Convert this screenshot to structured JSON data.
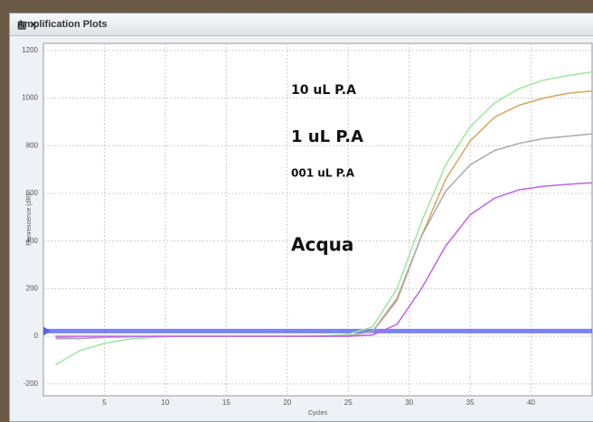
{
  "window": {
    "title": "Amplification Plots"
  },
  "chart_data": {
    "type": "line",
    "x_label": "Cycles",
    "y_label": "Fluorescence (dR)",
    "annotations": [
      "10 uL P.A",
      "1 uL P.A",
      "001 uL P.A",
      "Acqua"
    ],
    "x": [
      1,
      3,
      5,
      7,
      9,
      11,
      13,
      15,
      17,
      19,
      21,
      23,
      25,
      27,
      29,
      31,
      33,
      35,
      37,
      39,
      41,
      43,
      45
    ],
    "series": [
      {
        "color": "#9be89b",
        "values": [
          -120,
          -60,
          -30,
          -12,
          -5,
          0,
          0,
          0,
          0,
          0,
          0,
          2,
          8,
          40,
          200,
          480,
          720,
          880,
          980,
          1040,
          1075,
          1095,
          1110
        ]
      },
      {
        "color": "#d9a45a",
        "values": [
          -5,
          -8,
          -5,
          -3,
          0,
          0,
          0,
          0,
          0,
          0,
          0,
          0,
          2,
          20,
          150,
          420,
          660,
          820,
          920,
          970,
          1000,
          1020,
          1030
        ]
      },
      {
        "color": "#a9a9b3",
        "values": [
          -10,
          -10,
          -5,
          -2,
          0,
          0,
          0,
          0,
          0,
          0,
          0,
          0,
          2,
          20,
          160,
          420,
          610,
          720,
          780,
          810,
          830,
          840,
          850
        ]
      },
      {
        "color": "#c061e8",
        "values": [
          0,
          0,
          0,
          0,
          0,
          0,
          0,
          0,
          0,
          0,
          0,
          0,
          0,
          5,
          50,
          200,
          380,
          510,
          580,
          615,
          630,
          638,
          645
        ]
      }
    ],
    "threshold": 22,
    "threshold_color": "#5b63f0",
    "xlim": [
      0,
      45
    ],
    "xticks": [
      5,
      10,
      15,
      20,
      25,
      30,
      35,
      40
    ],
    "ylim": [
      -250,
      1230
    ],
    "yticks": [
      -200,
      0,
      200,
      400,
      600,
      800,
      1000,
      1200
    ],
    "grid": true
  }
}
